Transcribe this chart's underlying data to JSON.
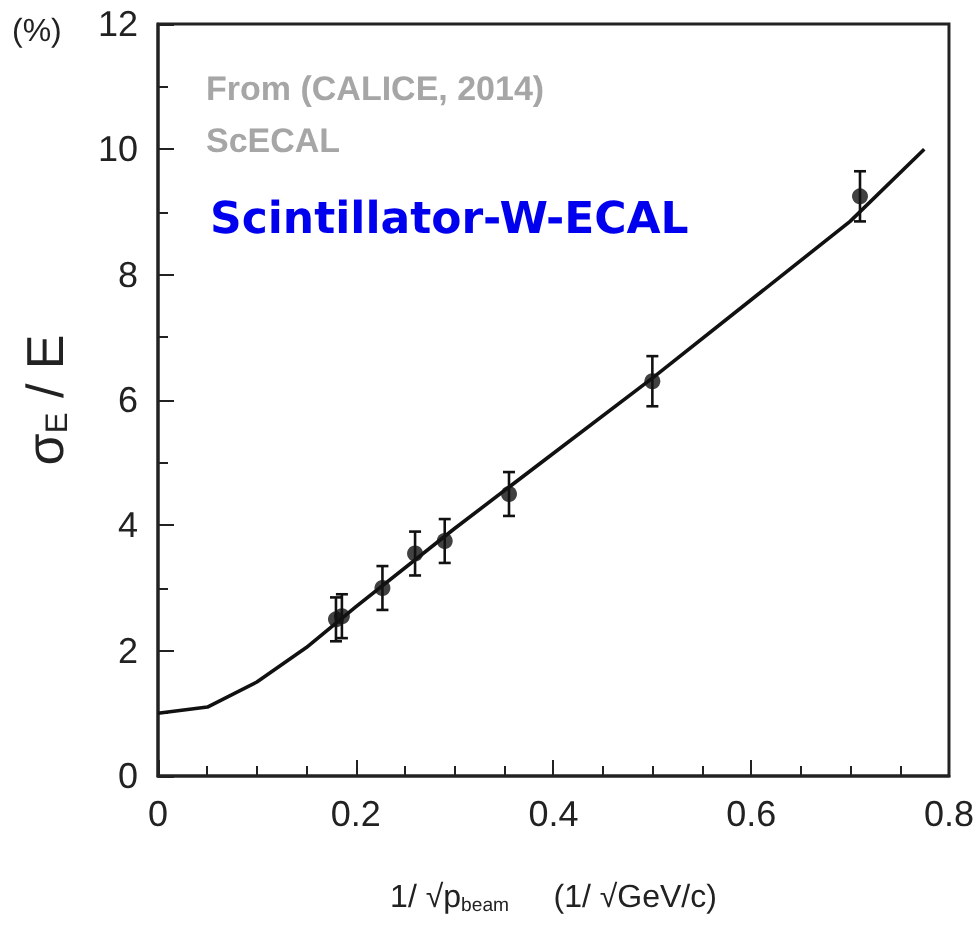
{
  "chart_data": {
    "type": "scatter",
    "title": "Scintillator-W-ECAL",
    "xlabel": "1/ √p$_{beam}$     (1/ √GeV/c)",
    "ylabel": "σ$_{E}$ / E",
    "annotations": [
      "(%)",
      "From (CALICE, 2014)",
      "ScECAL"
    ],
    "xlim": [
      0,
      0.8
    ],
    "xticks": [
      0,
      0.2,
      0.4,
      0.6,
      0.8
    ],
    "ylim": [
      0,
      12
    ],
    "yticks": [
      0,
      2,
      4,
      6,
      8,
      10,
      12
    ],
    "grid": false,
    "marker": "circle",
    "series": [
      {
        "color": "#111111",
        "x": [
          0.18,
          0.186,
          0.227,
          0.26,
          0.29,
          0.355,
          0.5,
          0.71
        ],
        "values": [
          2.5,
          2.55,
          3.0,
          3.55,
          3.75,
          4.5,
          6.3,
          9.25
        ],
        "errors": [
          0.35,
          0.35,
          0.35,
          0.35,
          0.35,
          0.35,
          0.4,
          0.4
        ]
      },
      {
        "type": "line",
        "color": "#111111",
        "marker": "none",
        "line_style": "solid",
        "x": [
          0,
          0.05,
          0.1,
          0.15,
          0.2,
          0.3,
          0.4,
          0.5,
          0.6,
          0.7,
          0.775
        ],
        "values": [
          1.0,
          1.1,
          1.5,
          2.05,
          2.7,
          3.95,
          5.15,
          6.35,
          7.6,
          8.85,
          10.0
        ]
      }
    ]
  }
}
